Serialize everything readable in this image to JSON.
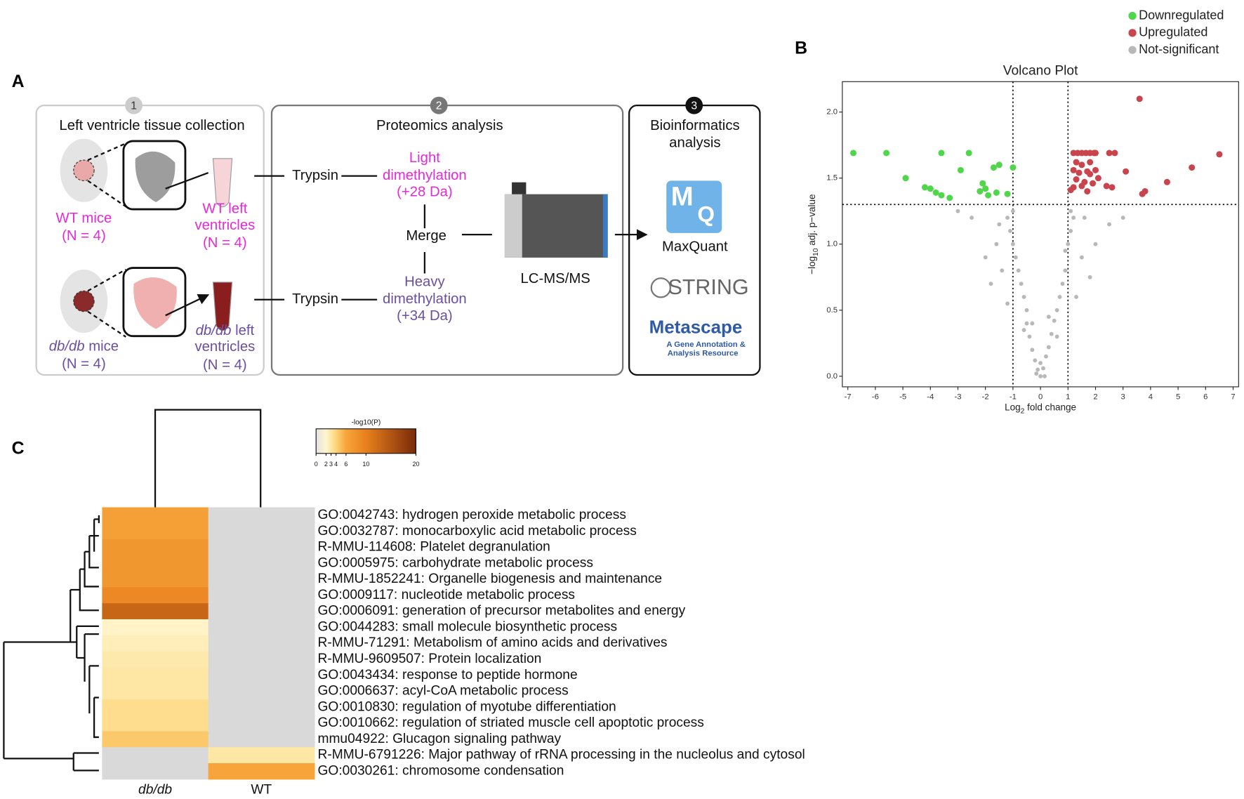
{
  "panel_labels": [
    "A",
    "B",
    "C"
  ],
  "panel_a": {
    "steps": [
      {
        "number": "1",
        "title": [
          "Left ventricle  tissue collection"
        ]
      },
      {
        "number": "2",
        "title": [
          "Proteomics analysis"
        ]
      },
      {
        "number": "3",
        "title": [
          "Bioinformatics",
          "analysis"
        ]
      }
    ],
    "wt": {
      "mice": "WT mice",
      "n": "(N = 4)",
      "ventricles": [
        "WT left",
        "ventricles",
        "(N = 4)"
      ]
    },
    "db": {
      "italic": "db/db",
      "mice": " mice",
      "n": "(N = 4)",
      "ventricles": [
        " left",
        "ventricles",
        "(N = 4)"
      ]
    },
    "trypsin": [
      "Trypsin",
      "Trypsin"
    ],
    "light": [
      "Light",
      "dimethylation",
      "(+28 Da)"
    ],
    "heavy": [
      "Heavy",
      "dimethylation",
      "(+34 Da)"
    ],
    "merge": "Merge",
    "instrument": "LC-MS/MS",
    "tools": {
      "mq_logo": [
        "M",
        "Q"
      ],
      "maxquant": "MaxQuant",
      "string": "STRING",
      "metascape": "Metascape",
      "metascape_sub": [
        "A Gene Annotation &",
        "Analysis Resource"
      ]
    }
  },
  "chart_data": [
    {
      "type": "scatter",
      "title": "Volcano Plot",
      "x_label": [
        "Log",
        "2",
        " fold change"
      ],
      "y_label": [
        "−log",
        "10",
        " adj. p−value"
      ],
      "xlim": [
        -7.2,
        7.2
      ],
      "xticks": [
        -7,
        -6,
        -5,
        -4,
        -3,
        -2,
        -1,
        0,
        1,
        2,
        3,
        4,
        5,
        6,
        7
      ],
      "ylim": [
        -0.08,
        2.23
      ],
      "yticks": [
        {
          "value": 0,
          "label": "0.0"
        },
        {
          "value": 0.5,
          "label": "0.5"
        },
        {
          "value": 1,
          "label": "1.0"
        },
        {
          "value": 1.5,
          "label": "1.5"
        },
        {
          "value": 2,
          "label": "2.0"
        }
      ],
      "thresholds": {
        "x": [
          -1,
          1
        ],
        "y": 1.3
      },
      "legend": "top-right",
      "series": [
        {
          "name": "Downregulated",
          "color": "#4fd64a",
          "x": [
            -6.8,
            -5.6,
            -3.6,
            -2.6,
            -1.5,
            -1.7,
            -1.0,
            -4.9,
            -4.2,
            -4.0,
            -3.8,
            -3.6,
            -3.3,
            -2.9,
            -2.1,
            -2.0,
            -2.2,
            -1.6,
            -1.2,
            -1.9
          ],
          "y": [
            1.69,
            1.69,
            1.69,
            1.69,
            1.6,
            1.58,
            1.58,
            1.5,
            1.43,
            1.42,
            1.39,
            1.37,
            1.35,
            1.56,
            1.46,
            1.42,
            1.4,
            1.39,
            1.38,
            1.37
          ]
        },
        {
          "name": "Upregulated",
          "color": "#c9444d",
          "x": [
            3.6,
            6.5,
            5.5,
            4.6,
            3.7,
            3.8,
            1.2,
            1.35,
            1.5,
            1.65,
            1.8,
            1.95,
            2.0,
            2.5,
            2.7,
            1.3,
            1.5,
            1.8,
            1.2,
            1.4,
            1.7,
            2.0,
            1.3,
            1.6,
            2.1,
            1.2,
            1.5,
            1.9,
            2.4,
            2.6,
            1.1,
            1.7,
            3.1,
            1.8
          ],
          "y": [
            2.1,
            1.68,
            1.58,
            1.47,
            1.38,
            1.4,
            1.69,
            1.69,
            1.69,
            1.69,
            1.69,
            1.69,
            1.69,
            1.69,
            1.69,
            1.62,
            1.6,
            1.62,
            1.56,
            1.54,
            1.55,
            1.56,
            1.49,
            1.47,
            1.5,
            1.43,
            1.44,
            1.46,
            1.44,
            1.43,
            1.41,
            1.4,
            1.55,
            1.53
          ]
        },
        {
          "name": "Not-significant",
          "color": "#b8b8b8",
          "x": [
            0,
            -0.1,
            0.1,
            -0.2,
            0.2,
            -0.3,
            0.3,
            -0.4,
            0.4,
            -0.5,
            0.5,
            -0.5,
            0.6,
            -0.6,
            0.7,
            -0.7,
            0.8,
            -0.8,
            0.9,
            -0.9,
            0.9,
            -1,
            1.0,
            -1.1,
            1.1,
            -1.2,
            1.2,
            -1.0,
            1.1,
            -3,
            -2.5,
            -1.6,
            -2.0,
            -1.4,
            -1.8,
            1.5,
            2.0,
            1.8,
            2.5,
            3.0,
            1.3,
            -1.2,
            0.0,
            0.15,
            -0.15,
            0.6,
            -0.6,
            1.6,
            -1.5,
            0.3,
            -0.3
          ],
          "y": [
            0,
            0.05,
            0.06,
            0.12,
            0.15,
            0.2,
            0.22,
            0.3,
            0.32,
            0.4,
            0.42,
            0.5,
            0.5,
            0.6,
            0.6,
            0.7,
            0.7,
            0.8,
            0.8,
            0.9,
            0.95,
            1.0,
            1.0,
            1.1,
            1.1,
            1.2,
            1.2,
            1.25,
            1.25,
            1.25,
            1.2,
            1.0,
            0.9,
            0.8,
            0.7,
            0.9,
            1.0,
            0.75,
            1.15,
            1.2,
            0.6,
            0.55,
            0.1,
            0.0,
            0.02,
            0.3,
            0.35,
            1.2,
            1.15,
            0.45,
            0.4
          ]
        }
      ]
    },
    {
      "type": "heatmap",
      "colorbar_title": "-log10(P)",
      "clim": [
        0,
        20
      ],
      "cticks": [
        0,
        2,
        3,
        4,
        6,
        10,
        20
      ],
      "colorscale": [
        [
          0,
          "#e2e2e2"
        ],
        [
          2,
          "#fff6cf"
        ],
        [
          4,
          "#fdd57a"
        ],
        [
          6,
          "#f7a53a"
        ],
        [
          10,
          "#e8801c"
        ],
        [
          20,
          "#7a2a0a"
        ]
      ],
      "null_color": "#d9d9d9",
      "columns": [
        "db/db",
        "WT"
      ],
      "rows": [
        "GO:0042743: hydrogen peroxide metabolic process",
        "GO:0032787: monocarboxylic acid metabolic process",
        "R-MMU-114608: Platelet degranulation",
        "GO:0005975: carbohydrate metabolic process",
        "R-MMU-1852241: Organelle biogenesis and maintenance",
        "GO:0009117: nucleotide metabolic process",
        "GO:0006091: generation of precursor metabolites and energy",
        "GO:0044283: small molecule biosynthetic process",
        "R-MMU-71291: Metabolism of amino acids and derivatives",
        "R-MMU-9609507: Protein localization",
        "GO:0043434: response to peptide hormone",
        "GO:0006637: acyl-CoA metabolic process",
        "GO:0010830: regulation of myotube differentiation",
        "GO:0010662: regulation of striated muscle cell apoptotic process",
        "mmu04922: Glucagon signaling pathway",
        "R-MMU-6791226: Major pathway of rRNA processing in the nucleolus and cytosol",
        "GO:0030261: chromosome condensation"
      ],
      "values": [
        [
          6.5,
          null
        ],
        [
          6.5,
          null
        ],
        [
          7.5,
          null
        ],
        [
          7.5,
          null
        ],
        [
          7.5,
          null
        ],
        [
          9,
          null
        ],
        [
          13,
          null
        ],
        [
          2.2,
          null
        ],
        [
          2.5,
          null
        ],
        [
          2.8,
          null
        ],
        [
          3,
          null
        ],
        [
          3,
          null
        ],
        [
          3.5,
          null
        ],
        [
          3.5,
          null
        ],
        [
          4.5,
          null
        ],
        [
          null,
          3
        ],
        [
          null,
          6
        ]
      ]
    }
  ]
}
